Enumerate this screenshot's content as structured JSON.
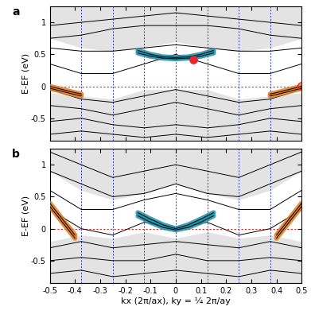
{
  "chart_data": [
    {
      "type": "line",
      "title": "a",
      "ylabel": "E-EF (eV)",
      "tick_labels": "y",
      "xlim": [
        -0.5,
        0.5
      ],
      "ylim": [
        -0.85,
        1.25
      ],
      "xticks": [
        -0.5,
        -0.4,
        -0.3,
        -0.2,
        -0.1,
        0,
        0.1,
        0.2,
        0.3,
        0.4,
        0.5
      ],
      "yticks": [
        -0.5,
        0,
        0.5,
        1
      ],
      "vlines": [
        -0.375,
        -0.25,
        -0.125,
        0,
        0.125,
        0.25,
        0.375
      ],
      "hlines": [
        0
      ],
      "series": [
        {
          "type": "area",
          "color": "#e3e3e3",
          "x": [
            -0.5,
            -0.375,
            -0.25,
            -0.125,
            0,
            0.125,
            0.25,
            0.375,
            0.5
          ],
          "lower": [
            0.75,
            0.6,
            0.55,
            0.6,
            0.7,
            0.6,
            0.55,
            0.6,
            0.75
          ],
          "values": [
            1.25,
            1.25,
            1.25,
            1.25,
            1.25,
            1.25,
            1.25,
            1.25,
            1.25
          ]
        },
        {
          "type": "area",
          "color": "#e3e3e3",
          "x": [
            -0.5,
            -0.375,
            -0.25,
            -0.125,
            0,
            0.125,
            0.25,
            0.375,
            0.5
          ],
          "lower": [
            -0.85,
            -0.85,
            -0.85,
            -0.85,
            -0.85,
            -0.85,
            -0.85,
            -0.85,
            -0.85
          ],
          "values": [
            -0.1,
            -0.15,
            -0.2,
            -0.05,
            -0.05,
            -0.05,
            -0.2,
            -0.15,
            -0.1
          ]
        },
        {
          "color": "#000000",
          "x": [
            -0.5,
            -0.375,
            -0.25,
            -0.125,
            0,
            0.125,
            0.25,
            0.375,
            0.5
          ],
          "values": [
            0.95,
            1.0,
            1.05,
            1.1,
            1.15,
            1.1,
            1.05,
            1.0,
            0.95
          ]
        },
        {
          "color": "#000000",
          "x": [
            -0.5,
            -0.375,
            -0.25,
            -0.125,
            0,
            0.125,
            0.25,
            0.375,
            0.5
          ],
          "values": [
            0.75,
            0.8,
            0.9,
            0.95,
            0.95,
            0.95,
            0.9,
            0.8,
            0.75
          ]
        },
        {
          "color": "#000000",
          "x": [
            -0.5,
            -0.375,
            -0.25,
            -0.125,
            0,
            0.125,
            0.25,
            0.375,
            0.5
          ],
          "values": [
            0.6,
            0.55,
            0.55,
            0.6,
            0.65,
            0.6,
            0.55,
            0.55,
            0.6
          ]
        },
        {
          "color": "#000000",
          "x": [
            -0.5,
            -0.375,
            -0.25,
            -0.125,
            0,
            0.125,
            0.25,
            0.375,
            0.5
          ],
          "values": [
            0.35,
            0.2,
            0.2,
            0.35,
            0.5,
            0.35,
            0.2,
            0.2,
            0.35
          ]
        },
        {
          "color": "#000000",
          "x": [
            -0.5,
            -0.375,
            -0.25,
            -0.125,
            0,
            0.125,
            0.25,
            0.375,
            0.5
          ],
          "values": [
            -0.05,
            -0.2,
            -0.25,
            -0.15,
            -0.05,
            -0.15,
            -0.25,
            -0.2,
            -0.05
          ]
        },
        {
          "color": "#000000",
          "x": [
            -0.5,
            -0.375,
            -0.25,
            -0.125,
            0,
            0.125,
            0.25,
            0.375,
            0.5
          ],
          "values": [
            -0.3,
            -0.35,
            -0.45,
            -0.35,
            -0.25,
            -0.35,
            -0.45,
            -0.35,
            -0.3
          ]
        },
        {
          "color": "#000000",
          "x": [
            -0.5,
            -0.375,
            -0.25,
            -0.125,
            0,
            0.125,
            0.25,
            0.375,
            0.5
          ],
          "values": [
            -0.55,
            -0.5,
            -0.6,
            -0.65,
            -0.6,
            -0.65,
            -0.6,
            -0.5,
            -0.55
          ]
        },
        {
          "color": "#000000",
          "x": [
            -0.5,
            -0.375,
            -0.25,
            -0.125,
            0,
            0.125,
            0.25,
            0.375,
            0.5
          ],
          "values": [
            -0.75,
            -0.7,
            -0.75,
            -0.8,
            -0.75,
            -0.8,
            -0.75,
            -0.7,
            -0.75
          ]
        },
        {
          "type": "highlight",
          "color": "#1f8fa8",
          "x": [
            -0.15,
            -0.1,
            -0.05,
            0,
            0.05,
            0.1,
            0.15
          ],
          "values": [
            0.56,
            0.5,
            0.46,
            0.45,
            0.46,
            0.5,
            0.56
          ]
        },
        {
          "type": "highlight",
          "color": "#1f8fa8",
          "x": [
            -0.15,
            -0.1,
            -0.05,
            0,
            0.05,
            0.1,
            0.15
          ],
          "values": [
            0.52,
            0.47,
            0.44,
            0.43,
            0.44,
            0.47,
            0.52
          ]
        },
        {
          "type": "highlight",
          "color": "#e07b20",
          "x": [
            -0.5,
            -0.45,
            -0.4,
            -0.375
          ],
          "values": [
            0.0,
            -0.05,
            -0.1,
            -0.12
          ]
        },
        {
          "type": "highlight",
          "color": "#e07b20",
          "x": [
            -0.5,
            -0.45,
            -0.4,
            -0.375
          ],
          "values": [
            -0.03,
            -0.08,
            -0.13,
            -0.15
          ]
        },
        {
          "type": "highlight",
          "color": "#e07b20",
          "x": [
            0.375,
            0.4,
            0.45,
            0.5
          ],
          "values": [
            -0.12,
            -0.1,
            -0.05,
            0.0
          ]
        },
        {
          "type": "highlight",
          "color": "#e07b20",
          "x": [
            0.375,
            0.4,
            0.45,
            0.5
          ],
          "values": [
            -0.15,
            -0.13,
            -0.08,
            -0.03
          ]
        },
        {
          "type": "scatter",
          "marker": "circle",
          "color": "#e8262b",
          "x": [
            0.07
          ],
          "values": [
            0.42
          ]
        },
        {
          "type": "scatter",
          "marker": "open_circle",
          "color": "#e8262b",
          "x": [
            0.5
          ],
          "values": [
            0.0
          ]
        }
      ]
    },
    {
      "type": "line",
      "title": "b",
      "ylabel": "E-EF (eV)",
      "xlabel": "kx (2π/ax), ky = ¼ 2π/ay",
      "xlim": [
        -0.5,
        0.5
      ],
      "ylim": [
        -0.85,
        1.25
      ],
      "xticks": [
        -0.5,
        -0.4,
        -0.3,
        -0.2,
        -0.1,
        0,
        0.1,
        0.2,
        0.3,
        0.4,
        0.5
      ],
      "yticks": [
        -0.5,
        0,
        0.5,
        1
      ],
      "vlines": [
        -0.375,
        -0.25,
        -0.125,
        0,
        0.125,
        0.25,
        0.375
      ],
      "hlines": [
        0
      ],
      "series": [
        {
          "type": "area",
          "color": "#e3e3e3",
          "x": [
            -0.5,
            -0.375,
            -0.25,
            -0.125,
            0,
            0.125,
            0.25,
            0.375,
            0.5
          ],
          "lower": [
            0.9,
            0.6,
            0.45,
            0.55,
            0.7,
            0.55,
            0.45,
            0.6,
            0.9
          ],
          "values": [
            1.25,
            1.25,
            1.25,
            1.25,
            1.25,
            1.25,
            1.25,
            1.25,
            1.25
          ]
        },
        {
          "type": "area",
          "color": "#e3e3e3",
          "x": [
            -0.5,
            -0.375,
            -0.25,
            -0.125,
            0,
            0.125,
            0.25,
            0.375,
            0.5
          ],
          "lower": [
            -0.85,
            -0.85,
            -0.85,
            -0.85,
            -0.85,
            -0.85,
            -0.85,
            -0.85,
            -0.85
          ],
          "values": [
            -0.2,
            -0.1,
            -0.15,
            -0.05,
            -0.15,
            -0.05,
            -0.15,
            -0.1,
            -0.2
          ]
        },
        {
          "color": "#000000",
          "x": [
            -0.5,
            -0.375,
            -0.25,
            -0.125,
            0,
            0.125,
            0.25,
            0.375,
            0.5
          ],
          "values": [
            1.2,
            1.0,
            0.8,
            0.9,
            1.0,
            0.9,
            0.8,
            1.0,
            1.2
          ]
        },
        {
          "color": "#000000",
          "x": [
            -0.5,
            -0.375,
            -0.25,
            -0.125,
            0,
            0.125,
            0.25,
            0.375,
            0.5
          ],
          "values": [
            0.9,
            0.7,
            0.5,
            0.55,
            0.7,
            0.55,
            0.5,
            0.7,
            0.9
          ]
        },
        {
          "color": "#000000",
          "x": [
            -0.5,
            -0.375,
            -0.25,
            -0.125,
            0,
            0.125,
            0.25,
            0.375,
            0.5
          ],
          "values": [
            0.6,
            0.3,
            0.3,
            0.45,
            0.55,
            0.45,
            0.3,
            0.3,
            0.6
          ]
        },
        {
          "color": "#000000",
          "x": [
            -0.5,
            -0.375,
            -0.25,
            -0.125,
            0,
            0.125,
            0.25,
            0.375,
            0.5
          ],
          "values": [
            0.3,
            0.0,
            -0.1,
            0.1,
            0.0,
            0.1,
            -0.1,
            0.0,
            0.3
          ]
        },
        {
          "color": "#000000",
          "x": [
            -0.5,
            -0.375,
            -0.25,
            -0.125,
            0,
            0.125,
            0.25,
            0.375,
            0.5
          ],
          "values": [
            -0.3,
            -0.2,
            -0.3,
            -0.25,
            -0.2,
            -0.25,
            -0.3,
            -0.2,
            -0.3
          ]
        },
        {
          "color": "#000000",
          "x": [
            -0.5,
            -0.375,
            -0.25,
            -0.125,
            0,
            0.125,
            0.25,
            0.375,
            0.5
          ],
          "values": [
            -0.5,
            -0.45,
            -0.5,
            -0.5,
            -0.4,
            -0.5,
            -0.5,
            -0.45,
            -0.5
          ]
        },
        {
          "color": "#000000",
          "x": [
            -0.5,
            -0.375,
            -0.25,
            -0.125,
            0,
            0.125,
            0.25,
            0.375,
            0.5
          ],
          "values": [
            -0.7,
            -0.65,
            -0.75,
            -0.7,
            -0.65,
            -0.7,
            -0.75,
            -0.65,
            -0.7
          ]
        },
        {
          "type": "highlight",
          "color": "#1f8fa8",
          "x": [
            -0.15,
            -0.1,
            -0.05,
            0,
            0.05,
            0.1,
            0.15
          ],
          "values": [
            0.25,
            0.15,
            0.06,
            0.0,
            0.06,
            0.15,
            0.25
          ]
        },
        {
          "type": "highlight",
          "color": "#1f8fa8",
          "x": [
            -0.15,
            -0.1,
            -0.05,
            0,
            0.05,
            0.1,
            0.15
          ],
          "values": [
            0.2,
            0.1,
            0.02,
            -0.02,
            0.02,
            0.1,
            0.2
          ]
        },
        {
          "type": "highlight",
          "color": "#e07b20",
          "x": [
            -0.5,
            -0.45,
            -0.4
          ],
          "values": [
            0.4,
            0.15,
            -0.1
          ]
        },
        {
          "type": "highlight",
          "color": "#e07b20",
          "x": [
            -0.5,
            -0.45,
            -0.4
          ],
          "values": [
            0.35,
            0.1,
            -0.15
          ]
        },
        {
          "type": "highlight",
          "color": "#e07b20",
          "x": [
            0.4,
            0.45,
            0.5
          ],
          "values": [
            -0.1,
            0.15,
            0.4
          ]
        },
        {
          "type": "highlight",
          "color": "#e07b20",
          "x": [
            0.4,
            0.45,
            0.5
          ],
          "values": [
            -0.15,
            0.1,
            0.35
          ]
        }
      ]
    }
  ]
}
